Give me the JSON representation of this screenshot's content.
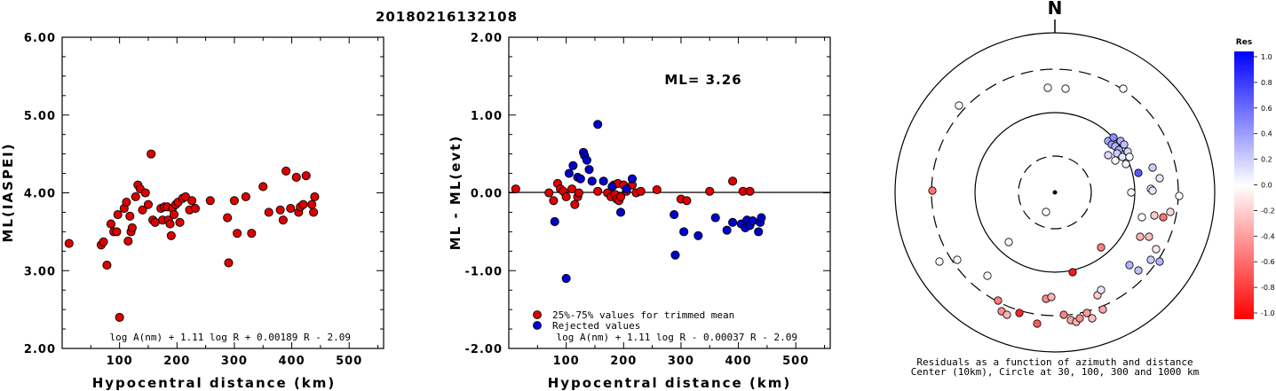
{
  "event_id": "20180216132108",
  "panel1": {
    "formula": "log A(nm) + 1.11 log R + 0.00189 R - 2.09"
  },
  "panel2": {
    "ml_text": "ML= 3.26",
    "formula": "log A(nm) + 1.11 log R - 0.00037 R - 2.09",
    "legend_trimmed": "25%-75% values for trimmed mean",
    "legend_rejected": "Rejected values"
  },
  "panel3": {
    "north_label": "N",
    "caption_line1": "Residuals as a function of azimuth and distance",
    "caption_line2": "Center (10km), Circle at 30, 100, 300 and 1000 km",
    "colorbar_title": "Res",
    "colorbar_ticks": [
      "1.0",
      "0.8",
      "0.6",
      "0.4",
      "0.2",
      "0.0",
      "-0.2",
      "-0.4",
      "-0.6",
      "-0.8",
      "-1.0"
    ]
  },
  "colors": {
    "red": "#dd0000",
    "blue": "#0000cc"
  },
  "chart_data": [
    {
      "type": "scatter",
      "title": "",
      "xlabel": "Hypocentral distance (km)",
      "ylabel": "ML(IASPEI)",
      "xlim": [
        0,
        560
      ],
      "ylim": [
        2.0,
        6.0
      ],
      "xticks": [
        "100",
        "200",
        "300",
        "400",
        "500"
      ],
      "yticks": [
        "2.00",
        "3.00",
        "4.00",
        "5.00",
        "6.00"
      ],
      "grid": false,
      "series": [
        {
          "points": [
            [
              12,
              3.35
            ],
            [
              68,
              3.33
            ],
            [
              72,
              3.37
            ],
            [
              78,
              3.07
            ],
            [
              85,
              3.6
            ],
            [
              90,
              3.5
            ],
            [
              95,
              3.5
            ],
            [
              97,
              3.72
            ],
            [
              100,
              2.4
            ],
            [
              108,
              3.8
            ],
            [
              112,
              3.88
            ],
            [
              115,
              3.38
            ],
            [
              118,
              3.7
            ],
            [
              120,
              3.5
            ],
            [
              122,
              3.55
            ],
            [
              128,
              3.95
            ],
            [
              132,
              4.1
            ],
            [
              136,
              4.05
            ],
            [
              140,
              3.78
            ],
            [
              145,
              4.0
            ],
            [
              150,
              3.85
            ],
            [
              155,
              4.5
            ],
            [
              158,
              3.65
            ],
            [
              162,
              3.62
            ],
            [
              172,
              3.8
            ],
            [
              175,
              3.65
            ],
            [
              178,
              3.82
            ],
            [
              183,
              3.82
            ],
            [
              185,
              3.65
            ],
            [
              188,
              3.6
            ],
            [
              190,
              3.45
            ],
            [
              192,
              3.8
            ],
            [
              195,
              3.72
            ],
            [
              198,
              3.85
            ],
            [
              202,
              3.88
            ],
            [
              205,
              3.62
            ],
            [
              210,
              3.93
            ],
            [
              215,
              3.95
            ],
            [
              222,
              3.78
            ],
            [
              226,
              3.9
            ],
            [
              232,
              3.8
            ],
            [
              258,
              3.9
            ],
            [
              288,
              3.68
            ],
            [
              290,
              3.1
            ],
            [
              300,
              3.9
            ],
            [
              305,
              3.48
            ],
            [
              320,
              3.95
            ],
            [
              330,
              3.48
            ],
            [
              350,
              4.08
            ],
            [
              360,
              3.75
            ],
            [
              380,
              3.78
            ],
            [
              385,
              3.65
            ],
            [
              390,
              4.28
            ],
            [
              398,
              3.8
            ],
            [
              408,
              4.2
            ],
            [
              412,
              3.75
            ],
            [
              415,
              3.82
            ],
            [
              420,
              3.85
            ],
            [
              425,
              4.22
            ],
            [
              435,
              3.85
            ],
            [
              438,
              3.75
            ],
            [
              440,
              3.95
            ]
          ]
        }
      ]
    },
    {
      "type": "scatter",
      "title": "",
      "xlabel": "Hypocentral distance (km)",
      "ylabel": "ML - ML(evt)",
      "xlim": [
        0,
        560
      ],
      "ylim": [
        -2.0,
        2.0
      ],
      "xticks": [
        "100",
        "200",
        "300",
        "400",
        "500"
      ],
      "yticks": [
        "-2.00",
        "-1.00",
        "0.00",
        "1.00",
        "2.00"
      ],
      "grid": false,
      "series": [
        {
          "name": "25%-75% values for trimmed mean",
          "points": [
            [
              12,
              0.05
            ],
            [
              70,
              0.0
            ],
            [
              78,
              -0.1
            ],
            [
              85,
              0.12
            ],
            [
              90,
              0.05
            ],
            [
              95,
              0.02
            ],
            [
              100,
              -0.05
            ],
            [
              110,
              0.05
            ],
            [
              115,
              -0.15
            ],
            [
              120,
              -0.05
            ],
            [
              122,
              0.0
            ],
            [
              155,
              0.02
            ],
            [
              172,
              0.0
            ],
            [
              178,
              -0.05
            ],
            [
              183,
              0.1
            ],
            [
              185,
              -0.02
            ],
            [
              188,
              -0.08
            ],
            [
              190,
              0.12
            ],
            [
              192,
              -0.1
            ],
            [
              195,
              -0.05
            ],
            [
              200,
              0.1
            ],
            [
              205,
              0.02
            ],
            [
              215,
              0.1
            ],
            [
              222,
              0.0
            ],
            [
              230,
              0.02
            ],
            [
              258,
              0.04
            ],
            [
              300,
              -0.08
            ],
            [
              310,
              -0.1
            ],
            [
              350,
              0.02
            ],
            [
              390,
              0.15
            ],
            [
              408,
              0.02
            ],
            [
              420,
              0.02
            ]
          ]
        },
        {
          "name": "Rejected values",
          "points": [
            [
              80,
              -0.37
            ],
            [
              100,
              -1.1
            ],
            [
              105,
              0.25
            ],
            [
              112,
              0.35
            ],
            [
              120,
              0.2
            ],
            [
              125,
              0.18
            ],
            [
              130,
              0.52
            ],
            [
              132,
              0.48
            ],
            [
              136,
              0.42
            ],
            [
              140,
              0.3
            ],
            [
              145,
              0.15
            ],
            [
              155,
              0.88
            ],
            [
              165,
              0.15
            ],
            [
              180,
              0.08
            ],
            [
              195,
              -0.25
            ],
            [
              205,
              0.05
            ],
            [
              215,
              0.18
            ],
            [
              290,
              -0.8
            ],
            [
              288,
              -0.28
            ],
            [
              305,
              -0.5
            ],
            [
              330,
              -0.55
            ],
            [
              360,
              -0.32
            ],
            [
              380,
              -0.48
            ],
            [
              390,
              -0.38
            ],
            [
              405,
              -0.4
            ],
            [
              412,
              -0.45
            ],
            [
              415,
              -0.35
            ],
            [
              420,
              -0.42
            ],
            [
              425,
              -0.36
            ],
            [
              435,
              -0.5
            ],
            [
              438,
              -0.38
            ],
            [
              440,
              -0.32
            ]
          ]
        }
      ]
    }
  ]
}
